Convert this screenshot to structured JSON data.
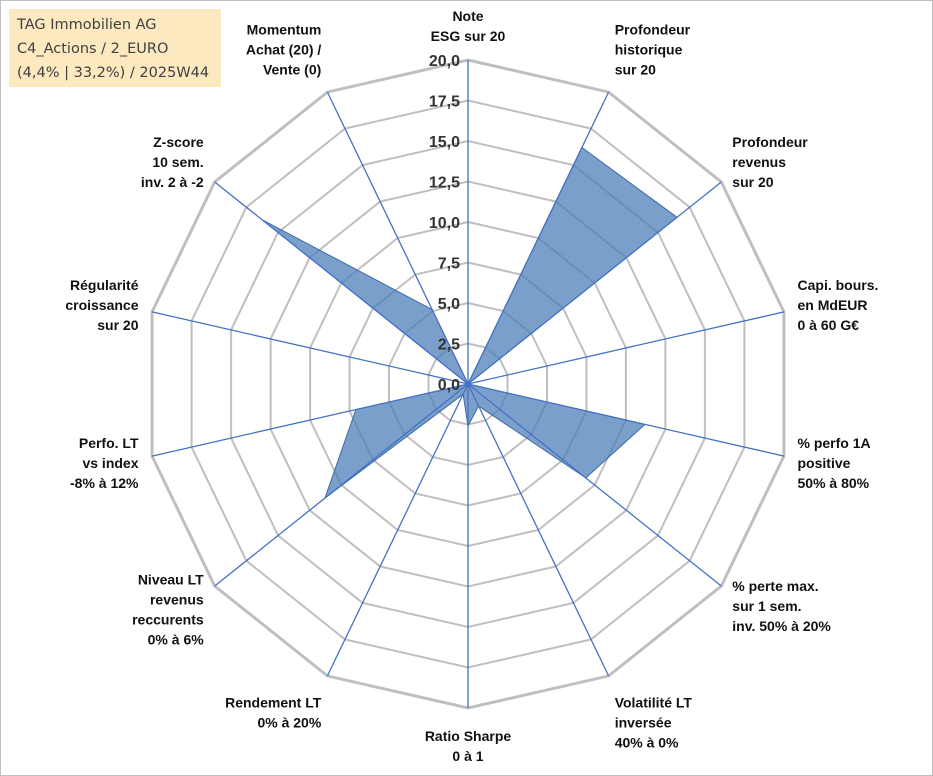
{
  "info_box": {
    "line1": "TAG Immobilien AG",
    "line2": "C4_Actions / 2_EURO",
    "line3": "(4,4% | 33,2%) / 2025W44",
    "background": "#fde9c0"
  },
  "chart_data": {
    "type": "radar",
    "title": "",
    "rmin": 0,
    "rmax": 20,
    "ticks": [
      "0,0",
      "2,5",
      "5,0",
      "7,5",
      "10,0",
      "12,5",
      "15,0",
      "17,5",
      "20,0"
    ],
    "axes": [
      [
        "Note",
        "ESG sur 20"
      ],
      [
        "Profondeur",
        "historique",
        "sur 20"
      ],
      [
        "Profondeur",
        "revenus",
        "sur 20"
      ],
      [
        "Capi. bours.",
        "en MdEUR",
        "0 à 60 G€"
      ],
      [
        "% perfo 1A",
        "positive",
        "50% à 80%"
      ],
      [
        "% perte max.",
        "sur 1 sem.",
        "inv. 50% à 20%"
      ],
      [
        "Volatilité LT",
        "inversée",
        "40% à 0%"
      ],
      [
        "Ratio Sharpe",
        "0 à 1"
      ],
      [
        "Rendement LT",
        "0% à 20%"
      ],
      [
        "Niveau LT",
        "revenus",
        "reccurents",
        "0% à 6%"
      ],
      [
        "Perfo. LT",
        "vs index",
        "-8% à 12%"
      ],
      [
        "Régularité",
        "croissance",
        "sur 20"
      ],
      [
        "Z-score",
        "10 sem.",
        "inv. 2 à -2"
      ],
      [
        "Momentum",
        "Achat (20) /",
        "Vente (0)"
      ]
    ],
    "series": [
      {
        "name": "TAG Immobilien AG",
        "values": [
          0.0,
          16.2,
          16.5,
          0.0,
          11.2,
          9.3,
          1.5,
          2.6,
          0.7,
          11.3,
          7.1,
          0.0,
          16.3,
          5.1
        ],
        "color": "#4f7fba",
        "fill_opacity": 0.75
      }
    ],
    "grid_color": "#bfbfbf",
    "spoke_color": "#4472c4"
  }
}
